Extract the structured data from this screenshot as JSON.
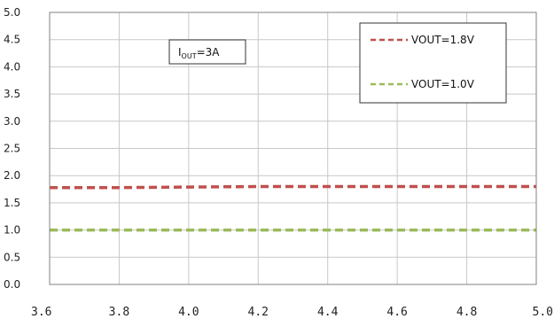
{
  "chart_data": {
    "type": "line",
    "x": [
      3.6,
      3.8,
      4.0,
      4.2,
      4.4,
      4.6,
      4.8,
      5.0
    ],
    "x_tick_labels": [
      "3.6",
      "3.8",
      "4.0",
      "4.2",
      "4.4",
      "4.6",
      "4.8",
      "5.0"
    ],
    "y_tick_labels": [
      "0.0",
      "0.5",
      "1.0",
      "1.5",
      "2.0",
      "2.5",
      "3.0",
      "3.5",
      "4.0",
      "4.5",
      "5.0"
    ],
    "xlim": [
      3.6,
      5.0
    ],
    "ylim": [
      0.0,
      5.0
    ],
    "grid": true,
    "legend_position": "top-right",
    "annotation": {
      "main": "I",
      "sub": "OUT",
      "suffix": "=3A"
    },
    "series": [
      {
        "name": "VOUT=1.8V",
        "color": "#c0504d",
        "style": "dashed",
        "values": [
          1.78,
          1.78,
          1.79,
          1.8,
          1.8,
          1.8,
          1.8,
          1.8
        ]
      },
      {
        "name": "VOUT=1.0V",
        "color": "#9bbb59",
        "style": "dashed",
        "values": [
          1.0,
          1.0,
          1.0,
          1.0,
          1.0,
          1.0,
          1.0,
          1.0
        ]
      }
    ]
  }
}
